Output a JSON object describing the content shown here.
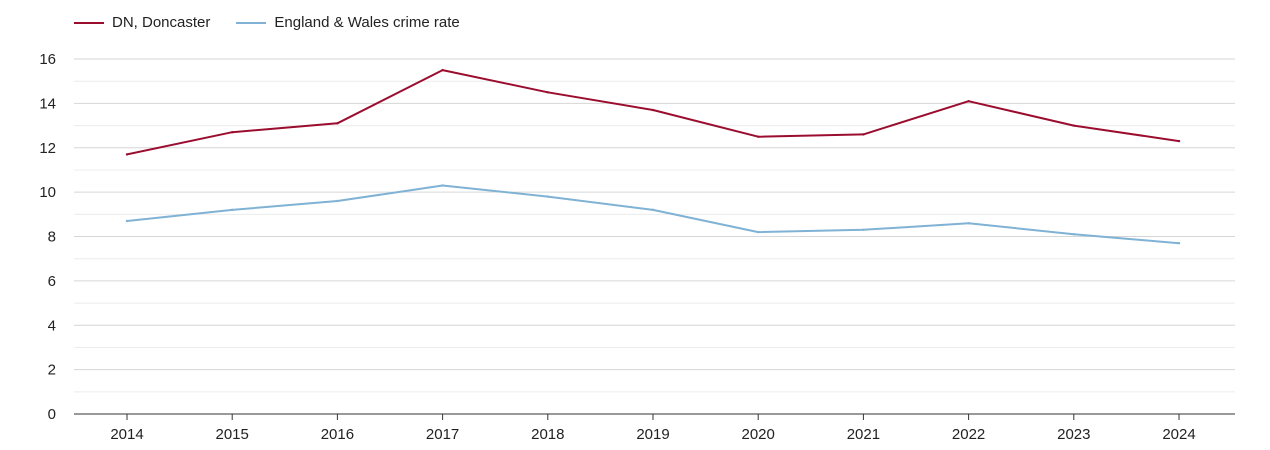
{
  "chart_data": {
    "type": "line",
    "x": [
      "2014",
      "2015",
      "2016",
      "2017",
      "2018",
      "2019",
      "2020",
      "2021",
      "2022",
      "2023",
      "2024"
    ],
    "series": [
      {
        "name": "DN, Doncaster",
        "color": "#9b0d2f",
        "values": [
          11.7,
          12.7,
          13.1,
          15.5,
          14.5,
          13.7,
          12.5,
          12.6,
          14.1,
          13.0,
          12.3
        ]
      },
      {
        "name": "England & Wales crime rate",
        "color": "#7fb2d4",
        "values": [
          8.7,
          9.2,
          9.6,
          10.3,
          9.8,
          9.2,
          8.2,
          8.3,
          8.6,
          8.1,
          7.7
        ]
      }
    ],
    "y_ticks": [
      "0",
      "2",
      "4",
      "6",
      "8",
      "10",
      "12",
      "14",
      "16"
    ],
    "ylim": [
      0,
      16
    ],
    "grid": true,
    "legend_position": "top-left"
  }
}
